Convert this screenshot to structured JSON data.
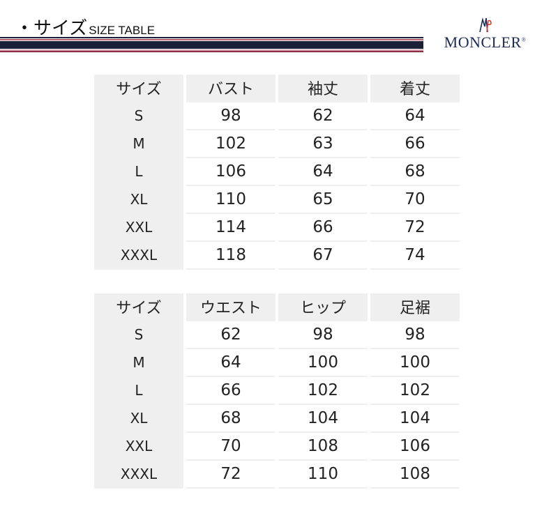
{
  "header": {
    "title_ja": "・サイズ",
    "title_en": "SIZE TABLE",
    "brand": "MONCLER",
    "colors": {
      "navy": "#1c1f38",
      "red": "#a03a4a"
    }
  },
  "tables": [
    {
      "headers": [
        "サイズ",
        "バスト",
        "袖丈",
        "着丈"
      ],
      "rows": [
        [
          "S",
          "98",
          "62",
          "64"
        ],
        [
          "M",
          "102",
          "63",
          "66"
        ],
        [
          "L",
          "106",
          "64",
          "68"
        ],
        [
          "XL",
          "110",
          "65",
          "70"
        ],
        [
          "XXL",
          "114",
          "66",
          "72"
        ],
        [
          "XXXL",
          "118",
          "67",
          "74"
        ]
      ]
    },
    {
      "headers": [
        "サイズ",
        "ウエスト",
        "ヒップ",
        "足裾"
      ],
      "rows": [
        [
          "S",
          "62",
          "98",
          "98"
        ],
        [
          "M",
          "64",
          "100",
          "100"
        ],
        [
          "L",
          "66",
          "102",
          "102"
        ],
        [
          "XL",
          "68",
          "104",
          "104"
        ],
        [
          "XXL",
          "70",
          "108",
          "106"
        ],
        [
          "XXXL",
          "72",
          "110",
          "108"
        ]
      ]
    }
  ]
}
